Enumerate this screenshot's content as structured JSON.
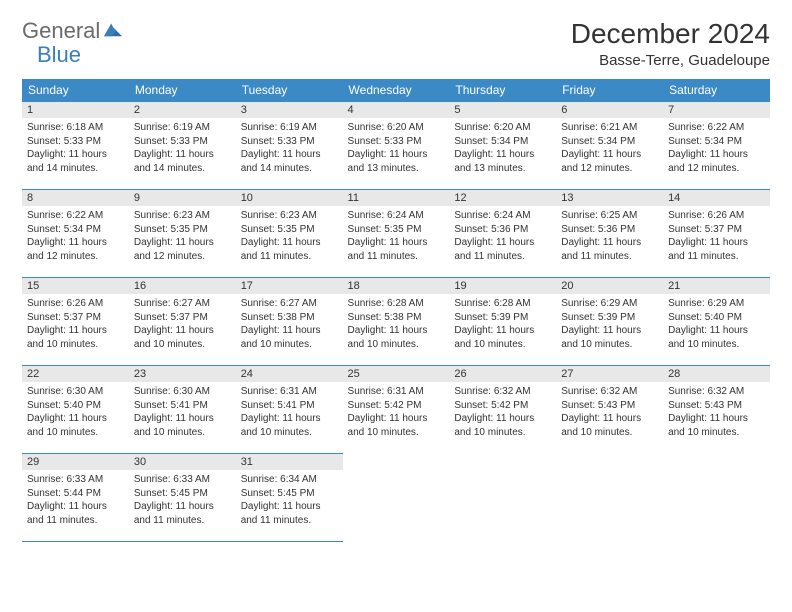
{
  "logo": {
    "word1": "General",
    "word2": "Blue"
  },
  "title": "December 2024",
  "location": "Basse-Terre, Guadeloupe",
  "header_bg": "#3b89c5",
  "header_fg": "#ffffff",
  "daynum_bg": "#e8e8e8",
  "border_color": "#3b89c5",
  "days_of_week": [
    "Sunday",
    "Monday",
    "Tuesday",
    "Wednesday",
    "Thursday",
    "Friday",
    "Saturday"
  ],
  "weeks": [
    [
      {
        "n": "1",
        "sunrise": "6:18 AM",
        "sunset": "5:33 PM",
        "dl_h": "11",
        "dl_m": "14"
      },
      {
        "n": "2",
        "sunrise": "6:19 AM",
        "sunset": "5:33 PM",
        "dl_h": "11",
        "dl_m": "14"
      },
      {
        "n": "3",
        "sunrise": "6:19 AM",
        "sunset": "5:33 PM",
        "dl_h": "11",
        "dl_m": "14"
      },
      {
        "n": "4",
        "sunrise": "6:20 AM",
        "sunset": "5:33 PM",
        "dl_h": "11",
        "dl_m": "13"
      },
      {
        "n": "5",
        "sunrise": "6:20 AM",
        "sunset": "5:34 PM",
        "dl_h": "11",
        "dl_m": "13"
      },
      {
        "n": "6",
        "sunrise": "6:21 AM",
        "sunset": "5:34 PM",
        "dl_h": "11",
        "dl_m": "12"
      },
      {
        "n": "7",
        "sunrise": "6:22 AM",
        "sunset": "5:34 PM",
        "dl_h": "11",
        "dl_m": "12"
      }
    ],
    [
      {
        "n": "8",
        "sunrise": "6:22 AM",
        "sunset": "5:34 PM",
        "dl_h": "11",
        "dl_m": "12"
      },
      {
        "n": "9",
        "sunrise": "6:23 AM",
        "sunset": "5:35 PM",
        "dl_h": "11",
        "dl_m": "12"
      },
      {
        "n": "10",
        "sunrise": "6:23 AM",
        "sunset": "5:35 PM",
        "dl_h": "11",
        "dl_m": "11"
      },
      {
        "n": "11",
        "sunrise": "6:24 AM",
        "sunset": "5:35 PM",
        "dl_h": "11",
        "dl_m": "11"
      },
      {
        "n": "12",
        "sunrise": "6:24 AM",
        "sunset": "5:36 PM",
        "dl_h": "11",
        "dl_m": "11"
      },
      {
        "n": "13",
        "sunrise": "6:25 AM",
        "sunset": "5:36 PM",
        "dl_h": "11",
        "dl_m": "11"
      },
      {
        "n": "14",
        "sunrise": "6:26 AM",
        "sunset": "5:37 PM",
        "dl_h": "11",
        "dl_m": "11"
      }
    ],
    [
      {
        "n": "15",
        "sunrise": "6:26 AM",
        "sunset": "5:37 PM",
        "dl_h": "11",
        "dl_m": "10"
      },
      {
        "n": "16",
        "sunrise": "6:27 AM",
        "sunset": "5:37 PM",
        "dl_h": "11",
        "dl_m": "10"
      },
      {
        "n": "17",
        "sunrise": "6:27 AM",
        "sunset": "5:38 PM",
        "dl_h": "11",
        "dl_m": "10"
      },
      {
        "n": "18",
        "sunrise": "6:28 AM",
        "sunset": "5:38 PM",
        "dl_h": "11",
        "dl_m": "10"
      },
      {
        "n": "19",
        "sunrise": "6:28 AM",
        "sunset": "5:39 PM",
        "dl_h": "11",
        "dl_m": "10"
      },
      {
        "n": "20",
        "sunrise": "6:29 AM",
        "sunset": "5:39 PM",
        "dl_h": "11",
        "dl_m": "10"
      },
      {
        "n": "21",
        "sunrise": "6:29 AM",
        "sunset": "5:40 PM",
        "dl_h": "11",
        "dl_m": "10"
      }
    ],
    [
      {
        "n": "22",
        "sunrise": "6:30 AM",
        "sunset": "5:40 PM",
        "dl_h": "11",
        "dl_m": "10"
      },
      {
        "n": "23",
        "sunrise": "6:30 AM",
        "sunset": "5:41 PM",
        "dl_h": "11",
        "dl_m": "10"
      },
      {
        "n": "24",
        "sunrise": "6:31 AM",
        "sunset": "5:41 PM",
        "dl_h": "11",
        "dl_m": "10"
      },
      {
        "n": "25",
        "sunrise": "6:31 AM",
        "sunset": "5:42 PM",
        "dl_h": "11",
        "dl_m": "10"
      },
      {
        "n": "26",
        "sunrise": "6:32 AM",
        "sunset": "5:42 PM",
        "dl_h": "11",
        "dl_m": "10"
      },
      {
        "n": "27",
        "sunrise": "6:32 AM",
        "sunset": "5:43 PM",
        "dl_h": "11",
        "dl_m": "10"
      },
      {
        "n": "28",
        "sunrise": "6:32 AM",
        "sunset": "5:43 PM",
        "dl_h": "11",
        "dl_m": "10"
      }
    ],
    [
      {
        "n": "29",
        "sunrise": "6:33 AM",
        "sunset": "5:44 PM",
        "dl_h": "11",
        "dl_m": "11"
      },
      {
        "n": "30",
        "sunrise": "6:33 AM",
        "sunset": "5:45 PM",
        "dl_h": "11",
        "dl_m": "11"
      },
      {
        "n": "31",
        "sunrise": "6:34 AM",
        "sunset": "5:45 PM",
        "dl_h": "11",
        "dl_m": "11"
      },
      null,
      null,
      null,
      null
    ]
  ],
  "labels": {
    "sunrise_prefix": "Sunrise: ",
    "sunset_prefix": "Sunset: ",
    "daylight_prefix": "Daylight: ",
    "hours_word": " hours",
    "and_word": "and ",
    "minutes_word": " minutes."
  }
}
